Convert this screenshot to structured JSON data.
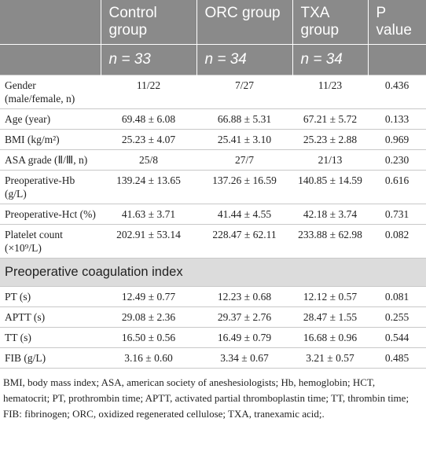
{
  "header": {
    "columns": [
      "",
      "Control group",
      "ORC group",
      "TXA group",
      "P value"
    ],
    "n_row": [
      "",
      "n = 33",
      "n = 34",
      "n = 34",
      ""
    ]
  },
  "table": {
    "rows": [
      [
        "Gender (male/female, n)",
        "11/22",
        "7/27",
        "11/23",
        "0.436"
      ],
      [
        "Age (year)",
        "69.48 ± 6.08",
        "66.88 ± 5.31",
        "67.21 ± 5.72",
        "0.133"
      ],
      [
        "BMI (kg/m²)",
        "25.23 ± 4.07",
        "25.41 ± 3.10",
        "25.23 ± 2.88",
        "0.969"
      ],
      [
        "ASA grade (Ⅱ/Ⅲ, n)",
        "25/8",
        "27/7",
        "21/13",
        "0.230"
      ],
      [
        "Preoperative-Hb (g/L)",
        "139.24 ± 13.65",
        "137.26 ± 16.59",
        "140.85 ± 14.59",
        "0.616"
      ],
      [
        "Preoperative-Hct (%)",
        "41.63 ± 3.71",
        "41.44 ± 4.55",
        "42.18 ± 3.74",
        "0.731"
      ],
      [
        "Platelet count (×10⁹/L)",
        "202.91 ± 53.14",
        "228.47 ± 62.11",
        "233.88 ± 62.98",
        "0.082"
      ]
    ],
    "section": "Preoperative coagulation index",
    "section_rows": [
      [
        "PT (s)",
        "12.49 ± 0.77",
        "12.23 ± 0.68",
        "12.12 ± 0.57",
        "0.081"
      ],
      [
        "APTT (s)",
        "29.08 ± 2.36",
        "29.37 ± 2.76",
        "28.47 ± 1.55",
        "0.255"
      ],
      [
        "TT (s)",
        "16.50 ± 0.56",
        "16.49 ± 0.79",
        "16.68 ± 0.96",
        "0.544"
      ],
      [
        "FIB (g/L)",
        "3.16 ± 0.60",
        "3.34 ± 0.67",
        "3.21 ± 0.57",
        "0.485"
      ]
    ]
  },
  "footnote": "BMI, body mass index; ASA, american society of aneshesiologists; Hb, hemoglobin; HCT, hematocrit; PT, prothrombin time; APTT, activated partial thromboplastin time; TT, thrombin time; FIB: fibrinogen; ORC, oxidized regenerated cellulose; TXA, tranexamic acid;."
}
